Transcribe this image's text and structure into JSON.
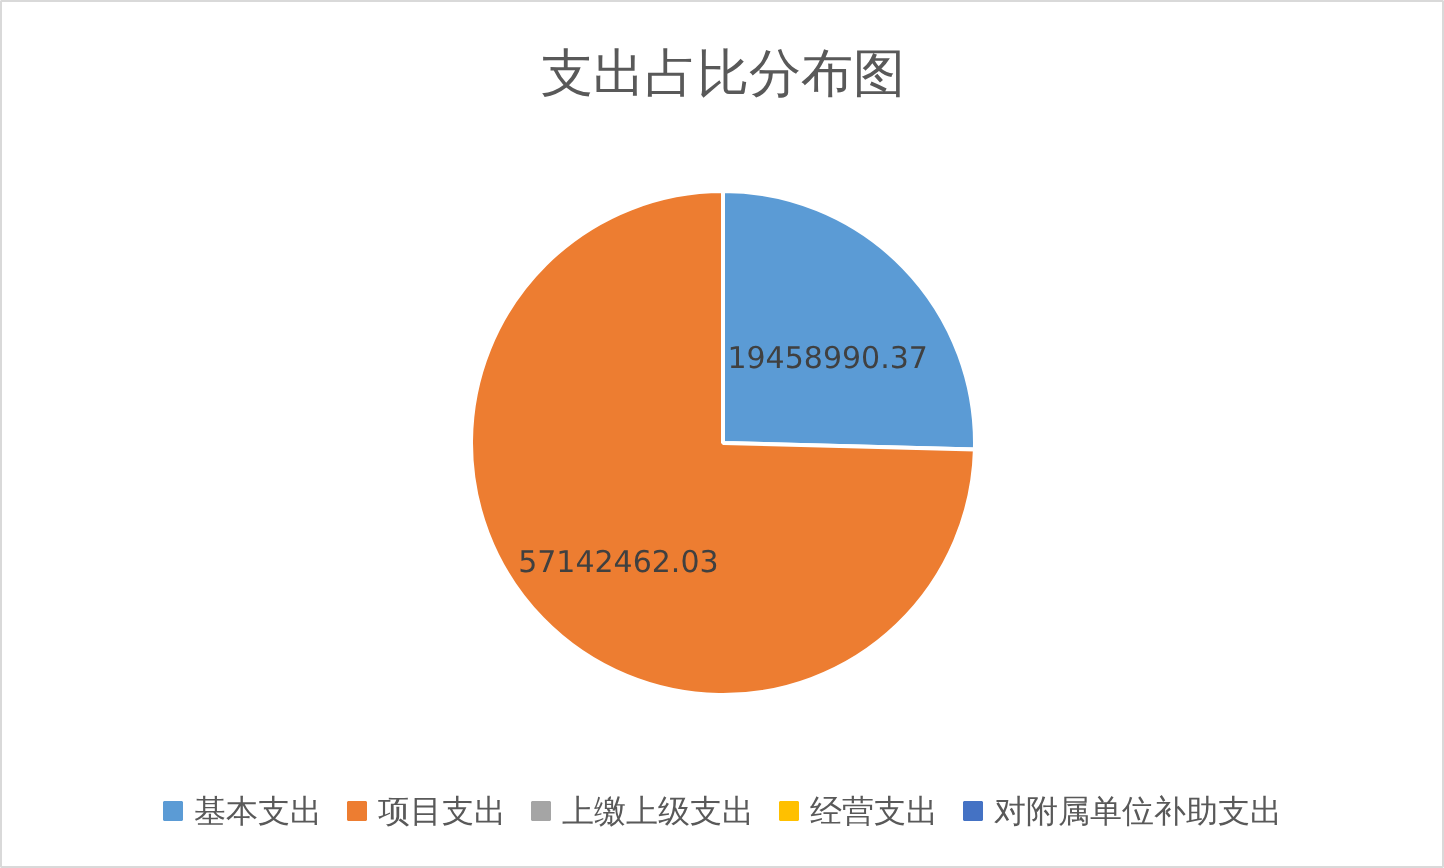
{
  "chart_data": {
    "type": "pie",
    "title": "支出占比分布图",
    "categories": [
      "基本支出",
      "项目支出",
      "上缴上级支出",
      "经营支出",
      "对附属单位补助支出"
    ],
    "values": [
      19458990.37,
      57142462.03,
      0,
      0,
      0
    ],
    "colors": [
      "#5b9bd5",
      "#ed7d31",
      "#a5a5a5",
      "#ffc000",
      "#4472c4"
    ],
    "value_labels": [
      "19458990.37",
      "57142462.03",
      null,
      null,
      null
    ],
    "legend": "bottom"
  }
}
